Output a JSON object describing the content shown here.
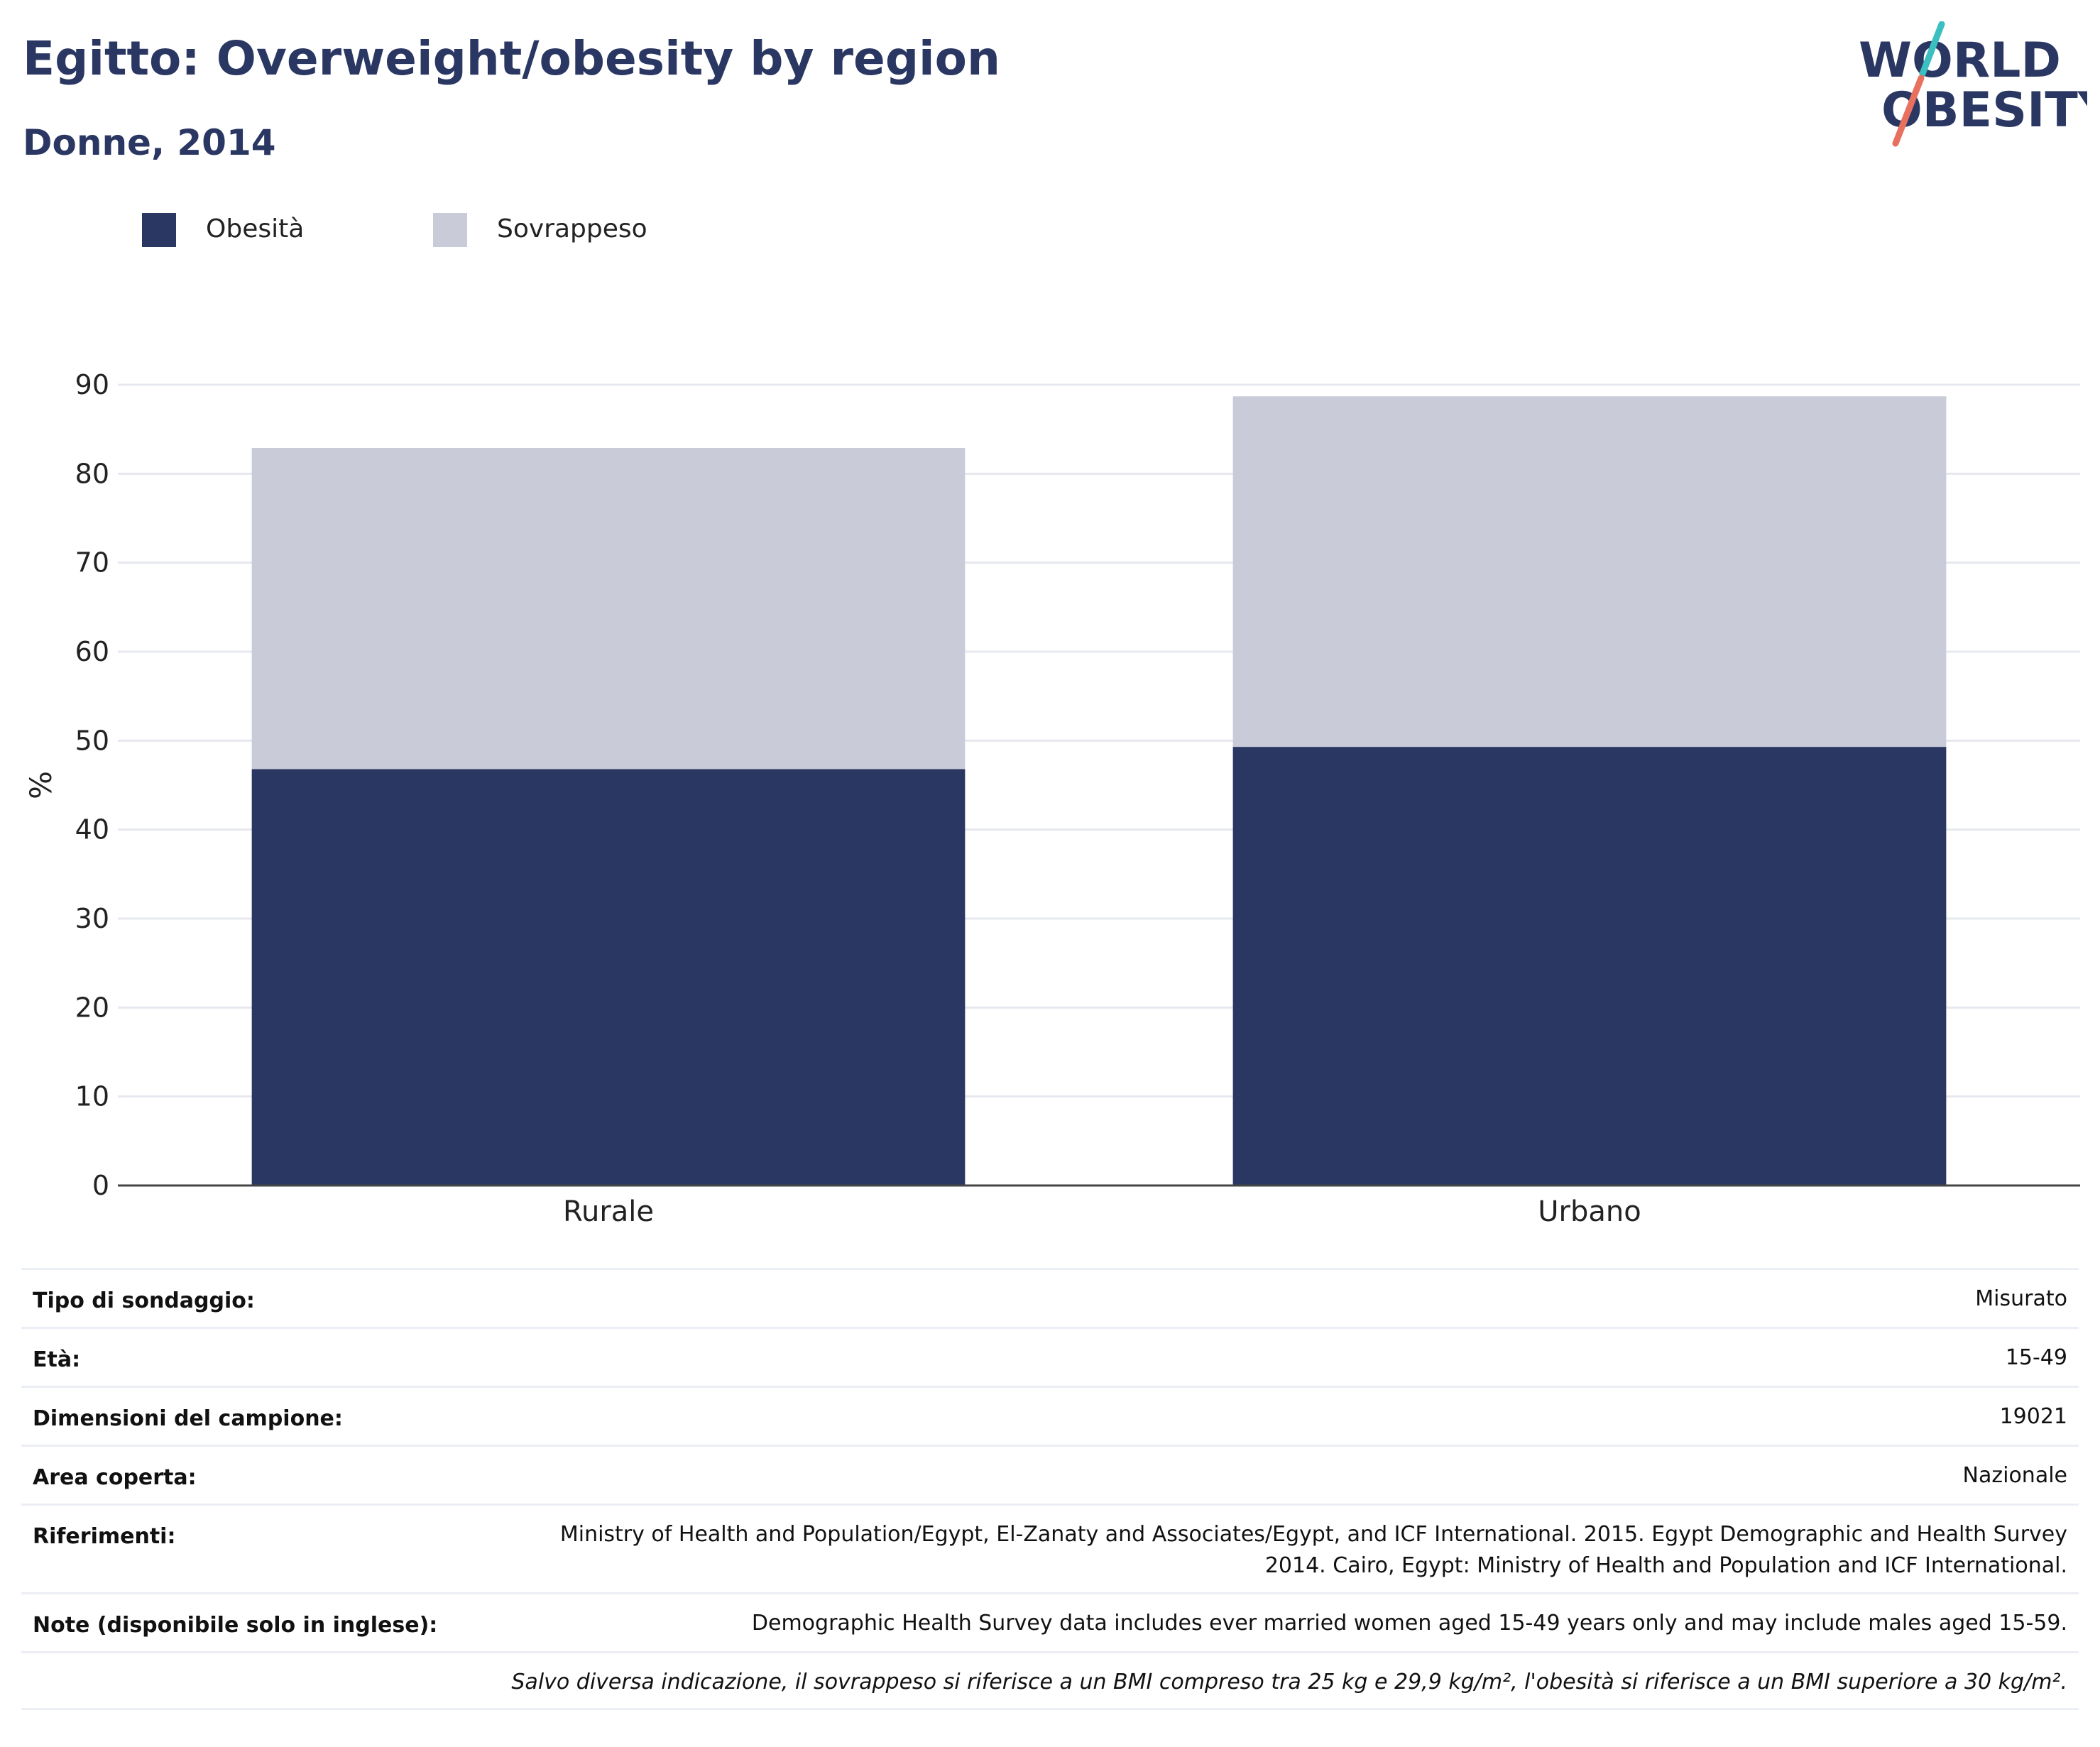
{
  "header": {
    "title": "Egitto: Overweight/obesity by region",
    "subtitle": "Donne, 2014"
  },
  "logo": {
    "line1": "WORLD",
    "line2": "OBESITY",
    "colors": {
      "text": "#2b3763",
      "slash_top": "#3bbfc0",
      "slash_bottom": "#e8705e"
    }
  },
  "legend": [
    {
      "label": "Obesità",
      "color": "#2b3763"
    },
    {
      "label": "Sovrappeso",
      "color": "#c9ccd8"
    }
  ],
  "chart_data": {
    "type": "bar",
    "stacked": true,
    "categories": [
      "Rurale",
      "Urbano"
    ],
    "series": [
      {
        "name": "Obesità",
        "values": [
          46.8,
          49.3
        ],
        "color": "#2b3763"
      },
      {
        "name": "Sovrappeso",
        "values": [
          36.1,
          39.4
        ],
        "color": "#c9ccd8"
      }
    ],
    "ylabel": "%",
    "ylim": [
      0,
      90
    ],
    "yticks": [
      0,
      10,
      20,
      30,
      40,
      50,
      60,
      70,
      80,
      90
    ],
    "grid": true,
    "legend_position": "top-left"
  },
  "info": [
    {
      "key": "Tipo di sondaggio:",
      "value": "Misurato"
    },
    {
      "key": "Età:",
      "value": "15-49"
    },
    {
      "key": "Dimensioni del campione:",
      "value": "19021"
    },
    {
      "key": "Area coperta:",
      "value": "Nazionale"
    },
    {
      "key": "Riferimenti:",
      "value": "Ministry of Health and Population/Egypt, El-Zanaty and Associates/Egypt, and ICF International. 2015. Egypt Demographic and Health Survey 2014. Cairo, Egypt: Ministry of Health and Population and ICF International."
    },
    {
      "key": "Note (disponibile solo in inglese):",
      "value": "Demographic Health Survey data includes ever married women aged 15-49 years only and may include males aged 15-59."
    },
    {
      "key": "",
      "value": "Salvo diversa indicazione, il sovrappeso si riferisce a un BMI compreso tra 25 kg e 29,9 kg/m², l'obesità si riferisce a un BMI superiore a 30 kg/m²."
    }
  ]
}
